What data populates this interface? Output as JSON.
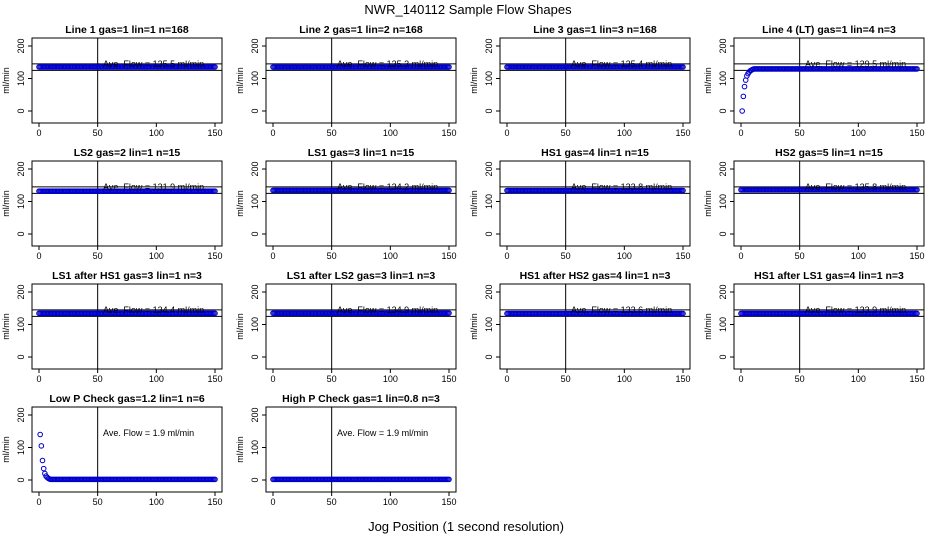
{
  "figure": {
    "title": "NWR_140112  Sample Flow Shapes",
    "xlabel": "Jog Position (1 second resolution)"
  },
  "colors": {
    "points": "#0000cc",
    "axis": "#000000",
    "text": "#000000"
  },
  "chart_data": [
    {
      "type": "scatter",
      "title": "Line 1 gas=1 lin=1 n=168",
      "ylabel": "ml/min",
      "xlim": [
        0,
        150
      ],
      "ylim": [
        0,
        200
      ],
      "xticks": [
        0,
        50,
        100,
        150
      ],
      "yticks": [
        0,
        100,
        200
      ],
      "annotation": "Ave. Flow =  135.5  ml/min",
      "vline": 50,
      "hlines": [
        125,
        145
      ],
      "series": [
        {
          "shape": "flat",
          "level": 135.5
        }
      ]
    },
    {
      "type": "scatter",
      "title": "Line 2 gas=1 lin=2 n=168",
      "ylabel": "ml/min",
      "xlim": [
        0,
        150
      ],
      "ylim": [
        0,
        200
      ],
      "xticks": [
        0,
        50,
        100,
        150
      ],
      "yticks": [
        0,
        100,
        200
      ],
      "annotation": "Ave. Flow =  135.3  ml/min",
      "vline": 50,
      "hlines": [
        125,
        145
      ],
      "series": [
        {
          "shape": "flat",
          "level": 135.3
        }
      ]
    },
    {
      "type": "scatter",
      "title": "Line 3 gas=1 lin=3 n=168",
      "ylabel": "ml/min",
      "xlim": [
        0,
        150
      ],
      "ylim": [
        0,
        200
      ],
      "xticks": [
        0,
        50,
        100,
        150
      ],
      "yticks": [
        0,
        100,
        200
      ],
      "annotation": "Ave. Flow =  135.4  ml/min",
      "vline": 50,
      "hlines": [
        125,
        145
      ],
      "series": [
        {
          "shape": "flat",
          "level": 135.4
        }
      ]
    },
    {
      "type": "scatter",
      "title": "Line 4 (LT) gas=1 lin=4 n=3",
      "ylabel": "ml/min",
      "xlim": [
        0,
        150
      ],
      "ylim": [
        0,
        200
      ],
      "xticks": [
        0,
        50,
        100,
        150
      ],
      "yticks": [
        0,
        100,
        200
      ],
      "annotation": "Ave. Flow =  129.5  ml/min",
      "vline": 50,
      "hlines": [
        125,
        145
      ],
      "series": [
        {
          "shape": "rise",
          "level": 129.5,
          "start": [
            [
              1,
              0
            ],
            [
              2,
              45
            ],
            [
              3,
              75
            ],
            [
              4,
              95
            ],
            [
              5,
              108
            ],
            [
              6,
              115
            ],
            [
              7,
              120
            ],
            [
              8,
              124
            ],
            [
              9,
              126
            ],
            [
              10,
              128
            ]
          ]
        }
      ]
    },
    {
      "type": "scatter",
      "title": "LS2 gas=2 lin=1 n=15",
      "ylabel": "ml/min",
      "xlim": [
        0,
        150
      ],
      "ylim": [
        0,
        200
      ],
      "xticks": [
        0,
        50,
        100,
        150
      ],
      "yticks": [
        0,
        100,
        200
      ],
      "annotation": "Ave. Flow =  131.9  ml/min",
      "vline": 50,
      "hlines": [
        125,
        145
      ],
      "series": [
        {
          "shape": "flat",
          "level": 131.9
        }
      ]
    },
    {
      "type": "scatter",
      "title": "LS1 gas=3 lin=1 n=15",
      "ylabel": "ml/min",
      "xlim": [
        0,
        150
      ],
      "ylim": [
        0,
        200
      ],
      "xticks": [
        0,
        50,
        100,
        150
      ],
      "yticks": [
        0,
        100,
        200
      ],
      "annotation": "Ave. Flow =  134.2  ml/min",
      "vline": 50,
      "hlines": [
        125,
        145
      ],
      "series": [
        {
          "shape": "flat",
          "level": 134.2
        }
      ]
    },
    {
      "type": "scatter",
      "title": "HS1 gas=4 lin=1 n=15",
      "ylabel": "ml/min",
      "xlim": [
        0,
        150
      ],
      "ylim": [
        0,
        200
      ],
      "xticks": [
        0,
        50,
        100,
        150
      ],
      "yticks": [
        0,
        100,
        200
      ],
      "annotation": "Ave. Flow =  133.8  ml/min",
      "vline": 50,
      "hlines": [
        125,
        145
      ],
      "series": [
        {
          "shape": "flat",
          "level": 133.8
        }
      ]
    },
    {
      "type": "scatter",
      "title": "HS2 gas=5 lin=1 n=15",
      "ylabel": "ml/min",
      "xlim": [
        0,
        150
      ],
      "ylim": [
        0,
        200
      ],
      "xticks": [
        0,
        50,
        100,
        150
      ],
      "yticks": [
        0,
        100,
        200
      ],
      "annotation": "Ave. Flow =  135.8  ml/min",
      "vline": 50,
      "hlines": [
        125,
        145
      ],
      "series": [
        {
          "shape": "flat",
          "level": 135.8
        }
      ]
    },
    {
      "type": "scatter",
      "title": "LS1 after HS1 gas=3 lin=1 n=3",
      "ylabel": "ml/min",
      "xlim": [
        0,
        150
      ],
      "ylim": [
        0,
        200
      ],
      "xticks": [
        0,
        50,
        100,
        150
      ],
      "yticks": [
        0,
        100,
        200
      ],
      "annotation": "Ave. Flow =  134.4  ml/min",
      "vline": 50,
      "hlines": [
        125,
        145
      ],
      "series": [
        {
          "shape": "flat",
          "level": 134.4
        }
      ]
    },
    {
      "type": "scatter",
      "title": "LS1 after LS2 gas=3 lin=1 n=3",
      "ylabel": "ml/min",
      "xlim": [
        0,
        150
      ],
      "ylim": [
        0,
        200
      ],
      "xticks": [
        0,
        50,
        100,
        150
      ],
      "yticks": [
        0,
        100,
        200
      ],
      "annotation": "Ave. Flow =  134.9  ml/min",
      "vline": 50,
      "hlines": [
        125,
        145
      ],
      "series": [
        {
          "shape": "flat",
          "level": 134.9
        }
      ]
    },
    {
      "type": "scatter",
      "title": "HS1 after HS2 gas=4 lin=1 n=3",
      "ylabel": "ml/min",
      "xlim": [
        0,
        150
      ],
      "ylim": [
        0,
        200
      ],
      "xticks": [
        0,
        50,
        100,
        150
      ],
      "yticks": [
        0,
        100,
        200
      ],
      "annotation": "Ave. Flow =  133.6  ml/min",
      "vline": 50,
      "hlines": [
        125,
        145
      ],
      "series": [
        {
          "shape": "flat",
          "level": 133.6
        }
      ]
    },
    {
      "type": "scatter",
      "title": "HS1 after LS1 gas=4 lin=1 n=3",
      "ylabel": "ml/min",
      "xlim": [
        0,
        150
      ],
      "ylim": [
        0,
        200
      ],
      "xticks": [
        0,
        50,
        100,
        150
      ],
      "yticks": [
        0,
        100,
        200
      ],
      "annotation": "Ave. Flow =  133.9  ml/min",
      "vline": 50,
      "hlines": [
        125,
        145
      ],
      "series": [
        {
          "shape": "flat",
          "level": 133.9
        }
      ]
    },
    {
      "type": "scatter",
      "title": "Low P Check gas=1.2 lin=1 n=6",
      "ylabel": "ml/min",
      "xlim": [
        0,
        150
      ],
      "ylim": [
        0,
        200
      ],
      "xticks": [
        0,
        50,
        100,
        150
      ],
      "yticks": [
        0,
        100,
        200
      ],
      "annotation": "Ave. Flow =  1.9  ml/min",
      "vline": 50,
      "hlines": [],
      "series": [
        {
          "shape": "decay",
          "level": 1.9,
          "start": [
            [
              1,
              140
            ],
            [
              2,
              105
            ],
            [
              3,
              60
            ],
            [
              4,
              35
            ],
            [
              5,
              20
            ],
            [
              6,
              12
            ],
            [
              7,
              8
            ],
            [
              8,
              5
            ],
            [
              9,
              3
            ]
          ]
        }
      ]
    },
    {
      "type": "scatter",
      "title": "High P Check gas=1 lin=0.8 n=3",
      "ylabel": "ml/min",
      "xlim": [
        0,
        150
      ],
      "ylim": [
        0,
        200
      ],
      "xticks": [
        0,
        50,
        100,
        150
      ],
      "yticks": [
        0,
        100,
        200
      ],
      "annotation": "Ave. Flow =  1.9  ml/min",
      "vline": 50,
      "hlines": [],
      "series": [
        {
          "shape": "flat",
          "level": 1.9
        }
      ]
    }
  ]
}
